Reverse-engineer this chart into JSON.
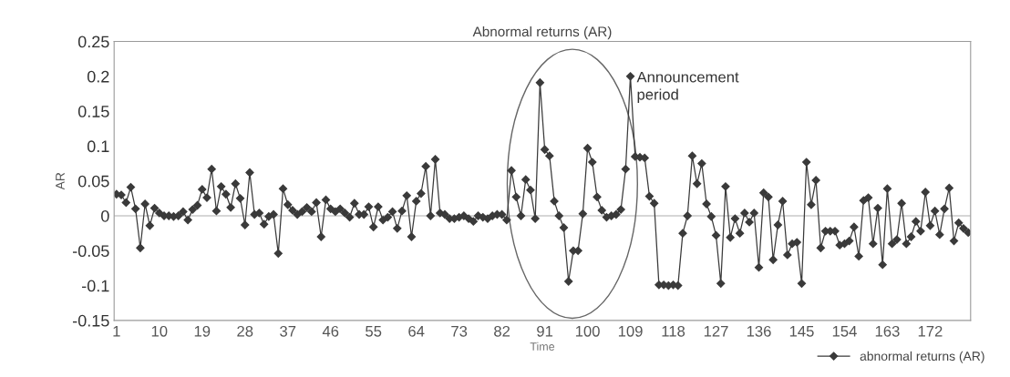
{
  "chart_data": {
    "type": "line",
    "title": "Abnormal returns (AR)",
    "xlabel": "Time",
    "ylabel": "AR",
    "categories": [
      "1",
      null,
      null,
      null,
      null,
      null,
      null,
      null,
      null,
      "10",
      null,
      null,
      null,
      null,
      null,
      null,
      null,
      null,
      "19",
      null,
      null,
      null,
      null,
      null,
      null,
      null,
      null,
      "28",
      null,
      null,
      null,
      null,
      null,
      null,
      null,
      null,
      "37",
      null,
      null,
      null,
      null,
      null,
      null,
      null,
      null,
      "46",
      null,
      null,
      null,
      null,
      null,
      null,
      null,
      null,
      "55",
      null,
      null,
      null,
      null,
      null,
      null,
      null,
      null,
      "64",
      null,
      null,
      null,
      null,
      null,
      null,
      null,
      null,
      "73",
      null,
      null,
      null,
      null,
      null,
      null,
      null,
      null,
      "82",
      null,
      null,
      null,
      null,
      null,
      null,
      null,
      null,
      "91",
      null,
      null,
      null,
      null,
      null,
      null,
      null,
      null,
      "100",
      null,
      null,
      null,
      null,
      null,
      null,
      null,
      null,
      "109",
      null,
      null,
      null,
      null,
      null,
      null,
      null,
      null,
      "118",
      null,
      null,
      null,
      null,
      null,
      null,
      null,
      null,
      "127",
      null,
      null,
      null,
      null,
      null,
      null,
      null,
      null,
      "136",
      null,
      null,
      null,
      null,
      null,
      null,
      null,
      null,
      "145",
      null,
      null,
      null,
      null,
      null,
      null,
      null,
      null,
      "154",
      null,
      null,
      null,
      null,
      null,
      null,
      null,
      null,
      "163",
      null,
      null,
      null,
      null,
      null,
      null,
      null,
      null,
      "172",
      null,
      null,
      null,
      null,
      null,
      null,
      null,
      null
    ],
    "series": [
      {
        "name": "abnormal returns (AR)",
        "color": "#3a3a3a",
        "values": [
          0.031,
          0.03,
          0.019,
          0.041,
          0.01,
          -0.046,
          0.017,
          -0.014,
          0.011,
          0.004,
          0.0,
          0.0,
          -0.001,
          0.0,
          0.006,
          -0.006,
          0.009,
          0.015,
          0.038,
          0.026,
          0.067,
          0.007,
          0.042,
          0.031,
          0.012,
          0.046,
          0.025,
          -0.013,
          0.062,
          0.002,
          0.004,
          -0.012,
          -0.001,
          0.002,
          -0.054,
          0.039,
          0.016,
          0.008,
          0.002,
          0.006,
          0.012,
          0.006,
          0.019,
          -0.03,
          0.023,
          0.01,
          0.006,
          0.01,
          0.004,
          -0.002,
          0.018,
          0.002,
          0.002,
          0.013,
          -0.016,
          0.013,
          -0.006,
          -0.002,
          0.006,
          -0.018,
          0.007,
          0.029,
          -0.03,
          0.021,
          0.032,
          0.071,
          0.0,
          0.081,
          0.004,
          0.002,
          -0.004,
          -0.004,
          -0.002,
          0.0,
          -0.004,
          -0.008,
          0.0,
          -0.002,
          -0.004,
          0.0,
          0.002,
          0.002,
          -0.006,
          0.065,
          0.027,
          0.0,
          0.052,
          0.037,
          -0.004,
          0.191,
          0.095,
          0.086,
          0.021,
          0.0,
          -0.017,
          -0.094,
          -0.05,
          -0.05,
          0.003,
          0.097,
          0.077,
          0.027,
          0.008,
          -0.002,
          0.0,
          0.002,
          0.009,
          0.067,
          0.2,
          0.085,
          0.084,
          0.083,
          0.028,
          0.018,
          -0.099,
          -0.099,
          -0.1,
          -0.099,
          -0.1,
          -0.025,
          0.0,
          0.086,
          0.046,
          0.075,
          0.017,
          -0.001,
          -0.028,
          -0.097,
          0.042,
          -0.031,
          -0.004,
          -0.025,
          0.004,
          -0.009,
          0.004,
          -0.074,
          0.033,
          0.027,
          -0.063,
          -0.013,
          0.021,
          -0.056,
          -0.04,
          -0.038,
          -0.097,
          0.077,
          0.016,
          0.051,
          -0.046,
          -0.022,
          -0.022,
          -0.022,
          -0.042,
          -0.04,
          -0.036,
          -0.016,
          -0.058,
          0.022,
          0.026,
          -0.04,
          0.011,
          -0.07,
          0.039,
          -0.04,
          -0.034,
          0.018,
          -0.04,
          -0.03,
          -0.008,
          -0.022,
          0.034,
          -0.014,
          0.007,
          -0.027,
          0.01,
          0.04,
          -0.036,
          -0.01,
          -0.018,
          -0.024
        ]
      }
    ],
    "ylim": [
      -0.15,
      0.25
    ],
    "yticks": [
      -0.15,
      -0.1,
      -0.05,
      0,
      0.05,
      0.1,
      0.15,
      0.2,
      0.25
    ],
    "ref_lines": [
      {
        "axis": "y",
        "value": 0,
        "color": "#c8c8c8"
      }
    ],
    "marker": "diamond",
    "line_style": "solid",
    "grid": false,
    "legend": "bottom right",
    "annotations": [
      {
        "text": "Announcement\nperiod",
        "x": "109",
        "y": 0.2
      }
    ]
  }
}
